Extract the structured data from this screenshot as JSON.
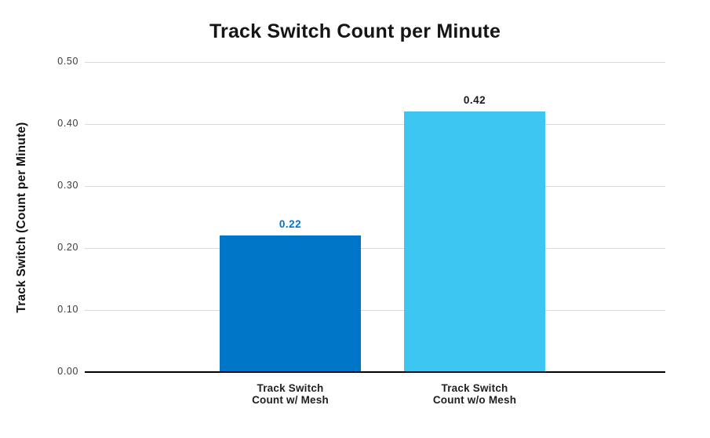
{
  "chart_data": {
    "type": "bar",
    "title": "Track Switch Count per Minute",
    "ylabel": "Track Switch (Count per Minute)",
    "xlabel": "",
    "ylim": [
      0,
      0.5
    ],
    "yticks": [
      "0.00",
      "0.10",
      "0.20",
      "0.30",
      "0.40",
      "0.50"
    ],
    "categories": [
      [
        "Track Switch",
        "Count w/ Mesh"
      ],
      [
        "Track Switch",
        "Count w/o Mesh"
      ]
    ],
    "values": [
      0.22,
      0.42
    ],
    "value_labels": [
      "0.22",
      "0.42"
    ],
    "bar_colors": [
      "#0076c8",
      "#3ec6f2"
    ],
    "value_label_colors": [
      "#0076c8",
      "#1a1a1a"
    ],
    "grid": true,
    "legend": false,
    "background": "#ffffff",
    "gridline_color": "#d8d8dd",
    "axis_color": "#000000"
  }
}
